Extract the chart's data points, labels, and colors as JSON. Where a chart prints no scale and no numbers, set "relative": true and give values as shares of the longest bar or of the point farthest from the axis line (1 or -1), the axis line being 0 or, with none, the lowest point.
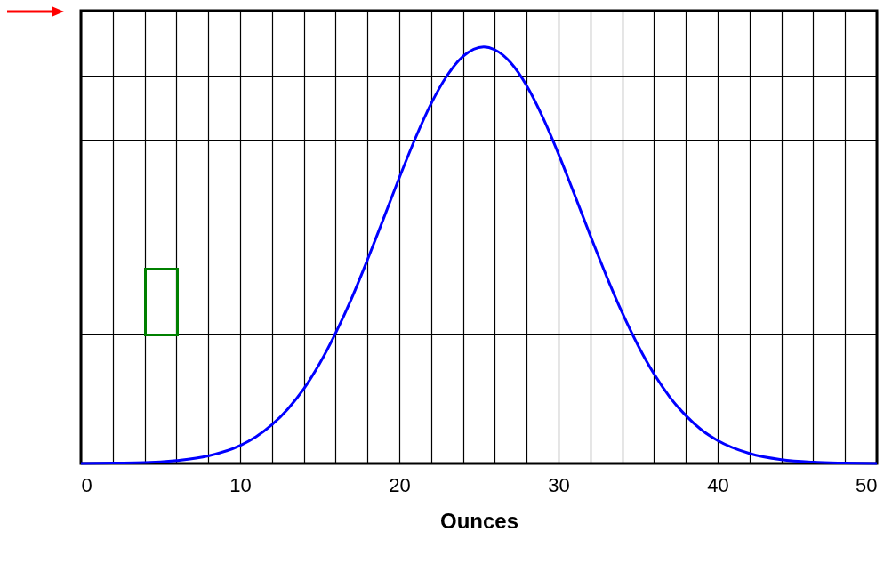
{
  "chart_data": {
    "type": "line",
    "relative": true,
    "xlabel": "Ounces",
    "grid": true,
    "marker": "none",
    "line_style": "solid",
    "xlim": [
      0,
      50
    ],
    "xticks": [
      0,
      {
        "value": 2,
        "label": null
      },
      {
        "value": 4,
        "label": null
      },
      {
        "value": 6,
        "label": null
      },
      {
        "value": 8,
        "label": null
      },
      10,
      {
        "value": 12,
        "label": null
      },
      {
        "value": 14,
        "label": null
      },
      {
        "value": 16,
        "label": null
      },
      {
        "value": 18,
        "label": null
      },
      20,
      {
        "value": 22,
        "label": null
      },
      {
        "value": 24,
        "label": null
      },
      {
        "value": 26,
        "label": null
      },
      {
        "value": 28,
        "label": null
      },
      30,
      {
        "value": 32,
        "label": null
      },
      {
        "value": 34,
        "label": null
      },
      {
        "value": 36,
        "label": null
      },
      {
        "value": 38,
        "label": null
      },
      40,
      {
        "value": 42,
        "label": null
      },
      {
        "value": 44,
        "label": null
      },
      {
        "value": 46,
        "label": null
      },
      {
        "value": 48,
        "label": null
      },
      50
    ],
    "series": [
      {
        "color": "#0000ff",
        "x": [
          0,
          2,
          4,
          6,
          8,
          10,
          11,
          12,
          13,
          14,
          15,
          16,
          17,
          18,
          19,
          20,
          21,
          22,
          23,
          24,
          25.3,
          26,
          27,
          28,
          29,
          30,
          31,
          32,
          33,
          34,
          35,
          36,
          37,
          38,
          39,
          40,
          42,
          44,
          46,
          48,
          50
        ],
        "values": [
          0,
          0.001,
          0.002,
          0.007,
          0.018,
          0.043,
          0.064,
          0.093,
          0.131,
          0.179,
          0.24,
          0.313,
          0.396,
          0.489,
          0.587,
          0.686,
          0.78,
          0.864,
          0.931,
          0.977,
          1,
          0.993,
          0.962,
          0.907,
          0.832,
          0.743,
          0.646,
          0.547,
          0.451,
          0.362,
          0.283,
          0.215,
          0.159,
          0.115,
          0.08,
          0.055,
          0.024,
          0.009,
          0.003,
          0.001,
          0
        ]
      }
    ]
  }
}
